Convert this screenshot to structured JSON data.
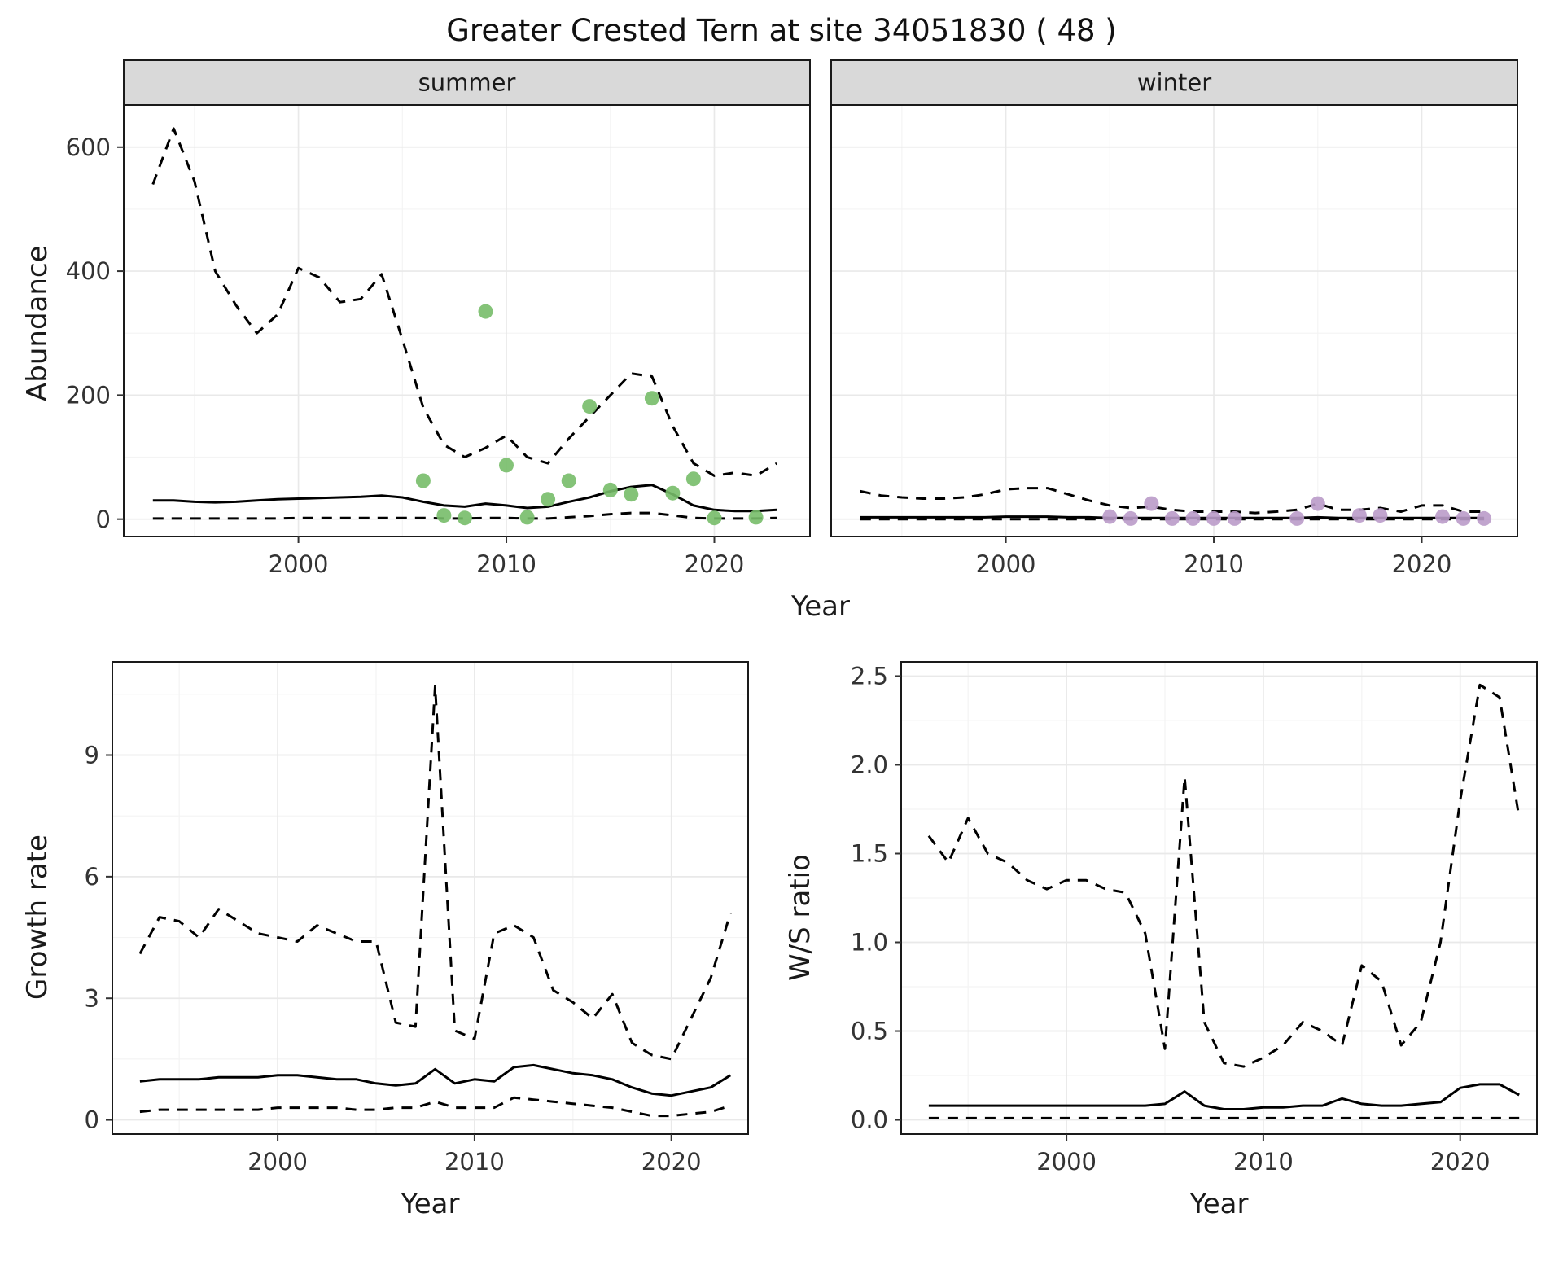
{
  "title": "Greater Crested Tern at site 34051830 ( 48 )",
  "axes": {
    "abundance": {
      "y_label": "Abundance",
      "x_label": "Year"
    },
    "growth": {
      "y_label": "Growth rate",
      "x_label": "Year"
    },
    "ws": {
      "y_label": "W/S ratio",
      "x_label": "Year"
    }
  },
  "colors": {
    "line": "#000000",
    "summer_points": "#77BD69",
    "winter_points": "#BA9BC9",
    "strip_background": "#D9D9D9",
    "panel_border": "#1A1A1A",
    "grid_major": "#E9E9E9",
    "grid_minor": "#F4F4F4",
    "tick_text": "#333333"
  },
  "chart_data": [
    {
      "id": "abundance-summer",
      "type": "line+scatter",
      "facet_label": "summer",
      "title": "",
      "xlabel": "Year",
      "ylabel": "Abundance",
      "xlim": [
        1991.6,
        2024.6
      ],
      "ylim": [
        -28,
        668
      ],
      "xticks": [
        2000,
        2010,
        2020
      ],
      "yticks": [
        0,
        200,
        400,
        600
      ],
      "grid": true,
      "legend": "none",
      "x": [
        1993,
        1994,
        1995,
        1996,
        1997,
        1998,
        1999,
        2000,
        2001,
        2002,
        2003,
        2004,
        2005,
        2006,
        2007,
        2008,
        2009,
        2010,
        2011,
        2012,
        2013,
        2014,
        2015,
        2016,
        2017,
        2018,
        2019,
        2020,
        2021,
        2022,
        2023
      ],
      "series": [
        {
          "name": "upper-ci",
          "style": "dashed",
          "values": [
            540,
            630,
            545,
            400,
            345,
            300,
            330,
            405,
            390,
            350,
            355,
            395,
            290,
            180,
            120,
            100,
            115,
            135,
            100,
            90,
            130,
            165,
            200,
            235,
            230,
            150,
            90,
            70,
            75,
            70,
            90
          ]
        },
        {
          "name": "median",
          "style": "solid",
          "values": [
            30,
            30,
            28,
            27,
            28,
            30,
            32,
            33,
            34,
            35,
            36,
            38,
            35,
            28,
            22,
            20,
            25,
            22,
            18,
            20,
            28,
            35,
            45,
            52,
            55,
            40,
            22,
            15,
            13,
            13,
            15
          ]
        },
        {
          "name": "lower-ci",
          "style": "dashed",
          "values": [
            1,
            1,
            1,
            1,
            1,
            1,
            1,
            2,
            2,
            2,
            2,
            2,
            2,
            2,
            1,
            1,
            2,
            2,
            1,
            1,
            3,
            5,
            8,
            10,
            10,
            6,
            2,
            1,
            1,
            1,
            2
          ]
        }
      ],
      "points": {
        "name": "observed-abundance-summer",
        "color_key": "summer_points",
        "x": [
          2006,
          2007,
          2008,
          2009,
          2010,
          2011,
          2012,
          2013,
          2014,
          2015,
          2016,
          2017,
          2018,
          2019,
          2020,
          2022
        ],
        "y": [
          62,
          6,
          2,
          335,
          87,
          3,
          32,
          62,
          182,
          47,
          40,
          195,
          42,
          65,
          2,
          3
        ]
      }
    },
    {
      "id": "abundance-winter",
      "type": "line+scatter",
      "facet_label": "winter",
      "title": "",
      "xlabel": "Year",
      "ylabel": "Abundance",
      "xlim": [
        1991.6,
        2024.6
      ],
      "ylim": [
        -28,
        668
      ],
      "xticks": [
        2000,
        2010,
        2020
      ],
      "yticks": [
        0,
        200,
        400,
        600
      ],
      "grid": true,
      "legend": "none",
      "x": [
        1993,
        1994,
        1995,
        1996,
        1997,
        1998,
        1999,
        2000,
        2001,
        2002,
        2003,
        2004,
        2005,
        2006,
        2007,
        2008,
        2009,
        2010,
        2011,
        2012,
        2013,
        2014,
        2015,
        2016,
        2017,
        2018,
        2019,
        2020,
        2021,
        2022,
        2023
      ],
      "series": [
        {
          "name": "upper-ci",
          "style": "dashed",
          "values": [
            45,
            38,
            35,
            33,
            33,
            35,
            40,
            48,
            50,
            50,
            40,
            30,
            22,
            18,
            20,
            15,
            12,
            12,
            12,
            10,
            12,
            15,
            25,
            15,
            15,
            18,
            12,
            22,
            22,
            12,
            12
          ]
        },
        {
          "name": "median",
          "style": "solid",
          "values": [
            3,
            3,
            3,
            3,
            3,
            3,
            3,
            4,
            4,
            4,
            3,
            3,
            2,
            2,
            2,
            2,
            2,
            2,
            2,
            2,
            2,
            2,
            3,
            2,
            2,
            2,
            2,
            2,
            2,
            2,
            2
          ]
        },
        {
          "name": "lower-ci",
          "style": "dashed",
          "values": [
            0,
            0,
            0,
            0,
            0,
            0,
            0,
            0,
            0,
            0,
            0,
            0,
            0,
            0,
            0,
            0,
            0,
            0,
            0,
            0,
            0,
            0,
            0,
            0,
            0,
            0,
            0,
            0,
            0,
            0,
            0
          ]
        }
      ],
      "points": {
        "name": "observed-abundance-winter",
        "color_key": "winter_points",
        "x": [
          2005,
          2006,
          2007,
          2008,
          2009,
          2010,
          2011,
          2014,
          2015,
          2017,
          2018,
          2021,
          2022,
          2023
        ],
        "y": [
          4,
          1,
          25,
          1,
          1,
          1,
          1,
          1,
          25,
          6,
          6,
          4,
          1,
          1
        ]
      }
    },
    {
      "id": "growth-rate",
      "type": "line",
      "facet_label": "",
      "title": "",
      "xlabel": "Year",
      "ylabel": "Growth rate",
      "xlim": [
        1991.6,
        2023.9
      ],
      "ylim": [
        -0.35,
        11.3
      ],
      "xticks": [
        2000,
        2010,
        2020
      ],
      "yticks": [
        0,
        3,
        6,
        9
      ],
      "grid": true,
      "legend": "none",
      "x": [
        1993,
        1994,
        1995,
        1996,
        1997,
        1998,
        1999,
        2000,
        2001,
        2002,
        2003,
        2004,
        2005,
        2006,
        2007,
        2008,
        2009,
        2010,
        2011,
        2012,
        2013,
        2014,
        2015,
        2016,
        2017,
        2018,
        2019,
        2020,
        2021,
        2022,
        2023
      ],
      "series": [
        {
          "name": "upper-ci",
          "style": "dashed",
          "values": [
            4.1,
            5.0,
            4.9,
            4.5,
            5.2,
            4.9,
            4.6,
            4.5,
            4.4,
            4.8,
            4.6,
            4.4,
            4.4,
            2.4,
            2.3,
            10.7,
            2.2,
            2.0,
            4.6,
            4.8,
            4.5,
            3.2,
            2.9,
            2.5,
            3.1,
            1.9,
            1.6,
            1.5,
            2.5,
            3.5,
            5.1
          ]
        },
        {
          "name": "median",
          "style": "solid",
          "values": [
            0.95,
            1.0,
            1.0,
            1.0,
            1.05,
            1.05,
            1.05,
            1.1,
            1.1,
            1.05,
            1.0,
            1.0,
            0.9,
            0.85,
            0.9,
            1.25,
            0.9,
            1.0,
            0.95,
            1.3,
            1.35,
            1.25,
            1.15,
            1.1,
            1.0,
            0.8,
            0.65,
            0.6,
            0.7,
            0.8,
            1.1
          ]
        },
        {
          "name": "lower-ci",
          "style": "dashed",
          "values": [
            0.2,
            0.25,
            0.25,
            0.25,
            0.25,
            0.25,
            0.25,
            0.3,
            0.3,
            0.3,
            0.3,
            0.25,
            0.25,
            0.3,
            0.3,
            0.45,
            0.3,
            0.3,
            0.3,
            0.55,
            0.5,
            0.45,
            0.4,
            0.35,
            0.3,
            0.2,
            0.1,
            0.1,
            0.15,
            0.2,
            0.35
          ]
        }
      ]
    },
    {
      "id": "ws-ratio",
      "type": "line",
      "facet_label": "",
      "title": "",
      "xlabel": "Year",
      "ylabel": "W/S ratio",
      "xlim": [
        1991.6,
        2023.9
      ],
      "ylim": [
        -0.08,
        2.58
      ],
      "xticks": [
        2000,
        2010,
        2020
      ],
      "yticks": [
        0,
        0.5,
        1,
        1.5,
        2,
        2.5
      ],
      "ytick_labels": [
        "0.0",
        "0.5",
        "1.0",
        "1.5",
        "2.0",
        "2.5"
      ],
      "grid": true,
      "legend": "none",
      "x": [
        1993,
        1994,
        1995,
        1996,
        1997,
        1998,
        1999,
        2000,
        2001,
        2002,
        2003,
        2004,
        2005,
        2006,
        2007,
        2008,
        2009,
        2010,
        2011,
        2012,
        2013,
        2014,
        2015,
        2016,
        2017,
        2018,
        2019,
        2020,
        2021,
        2022,
        2023
      ],
      "series": [
        {
          "name": "upper-ci",
          "style": "dashed",
          "values": [
            1.6,
            1.45,
            1.7,
            1.5,
            1.45,
            1.35,
            1.3,
            1.35,
            1.35,
            1.3,
            1.28,
            1.05,
            0.4,
            1.93,
            0.55,
            0.32,
            0.3,
            0.35,
            0.42,
            0.55,
            0.5,
            0.42,
            0.87,
            0.78,
            0.42,
            0.55,
            1.0,
            1.8,
            2.45,
            2.38,
            1.7
          ]
        },
        {
          "name": "median",
          "style": "solid",
          "values": [
            0.08,
            0.08,
            0.08,
            0.08,
            0.08,
            0.08,
            0.08,
            0.08,
            0.08,
            0.08,
            0.08,
            0.08,
            0.09,
            0.16,
            0.08,
            0.06,
            0.06,
            0.07,
            0.07,
            0.08,
            0.08,
            0.12,
            0.09,
            0.08,
            0.08,
            0.09,
            0.1,
            0.18,
            0.2,
            0.2,
            0.14
          ]
        },
        {
          "name": "lower-ci",
          "style": "dashed",
          "values": [
            0.01,
            0.01,
            0.01,
            0.01,
            0.01,
            0.01,
            0.01,
            0.01,
            0.01,
            0.01,
            0.01,
            0.01,
            0.01,
            0.01,
            0.01,
            0.01,
            0.01,
            0.01,
            0.01,
            0.01,
            0.01,
            0.01,
            0.01,
            0.01,
            0.01,
            0.01,
            0.01,
            0.01,
            0.01,
            0.01,
            0.01
          ]
        }
      ]
    }
  ]
}
